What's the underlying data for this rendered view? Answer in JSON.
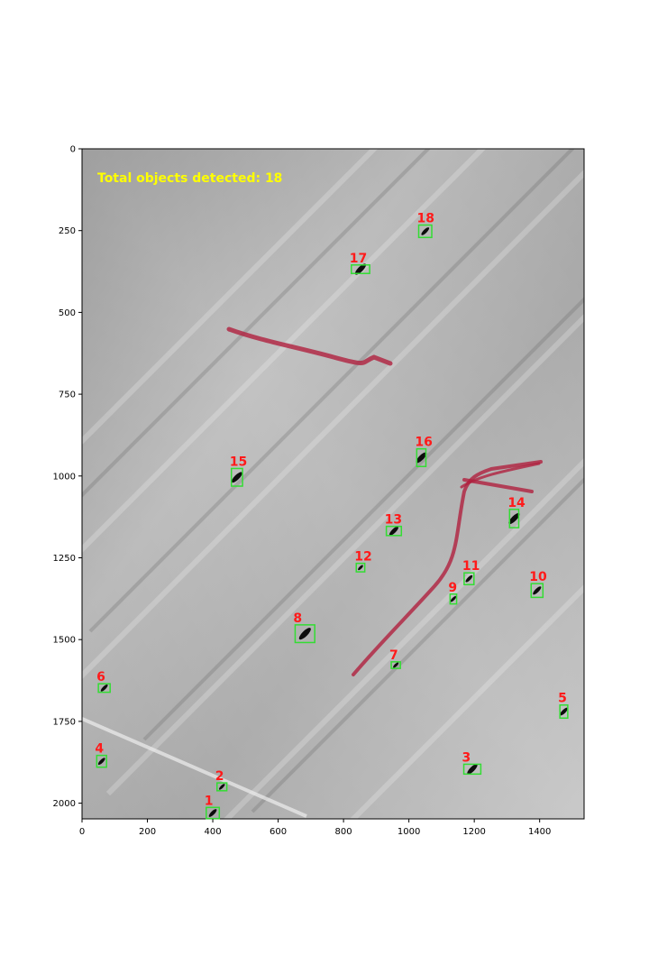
{
  "overlay": {
    "total_text": "Total objects detected: 18",
    "total_color": "#ffff00",
    "label_color": "#ff1a1a",
    "box_color": "#33dd33"
  },
  "axes": {
    "xlim": [
      0,
      1536
    ],
    "ylim": [
      0,
      2048
    ],
    "x_ticks": [
      0,
      200,
      400,
      600,
      800,
      1000,
      1200,
      1400
    ],
    "y_ticks": [
      0,
      250,
      500,
      750,
      1000,
      1250,
      1500,
      1750,
      2000
    ]
  },
  "objects": [
    {
      "id": "1",
      "x": 400,
      "y": 2030,
      "w": 40,
      "h": 34
    },
    {
      "id": "2",
      "x": 428,
      "y": 1950,
      "w": 30,
      "h": 24
    },
    {
      "id": "3",
      "x": 1194,
      "y": 1896,
      "w": 52,
      "h": 30
    },
    {
      "id": "4",
      "x": 60,
      "y": 1872,
      "w": 30,
      "h": 36
    },
    {
      "id": "5",
      "x": 1474,
      "y": 1720,
      "w": 24,
      "h": 40
    },
    {
      "id": "6",
      "x": 68,
      "y": 1648,
      "w": 36,
      "h": 26
    },
    {
      "id": "7",
      "x": 960,
      "y": 1578,
      "w": 28,
      "h": 20
    },
    {
      "id": "8",
      "x": 682,
      "y": 1482,
      "w": 60,
      "h": 54
    },
    {
      "id": "9",
      "x": 1136,
      "y": 1376,
      "w": 20,
      "h": 30
    },
    {
      "id": "10",
      "x": 1392,
      "y": 1350,
      "w": 36,
      "h": 42
    },
    {
      "id": "11",
      "x": 1184,
      "y": 1314,
      "w": 30,
      "h": 36
    },
    {
      "id": "12",
      "x": 852,
      "y": 1280,
      "w": 26,
      "h": 26
    },
    {
      "id": "13",
      "x": 954,
      "y": 1168,
      "w": 46,
      "h": 28
    },
    {
      "id": "14",
      "x": 1322,
      "y": 1130,
      "w": 28,
      "h": 56
    },
    {
      "id": "15",
      "x": 474,
      "y": 1004,
      "w": 34,
      "h": 54
    },
    {
      "id": "16",
      "x": 1038,
      "y": 944,
      "w": 28,
      "h": 54
    },
    {
      "id": "17",
      "x": 852,
      "y": 368,
      "w": 56,
      "h": 26
    },
    {
      "id": "18",
      "x": 1050,
      "y": 252,
      "w": 40,
      "h": 38
    }
  ]
}
